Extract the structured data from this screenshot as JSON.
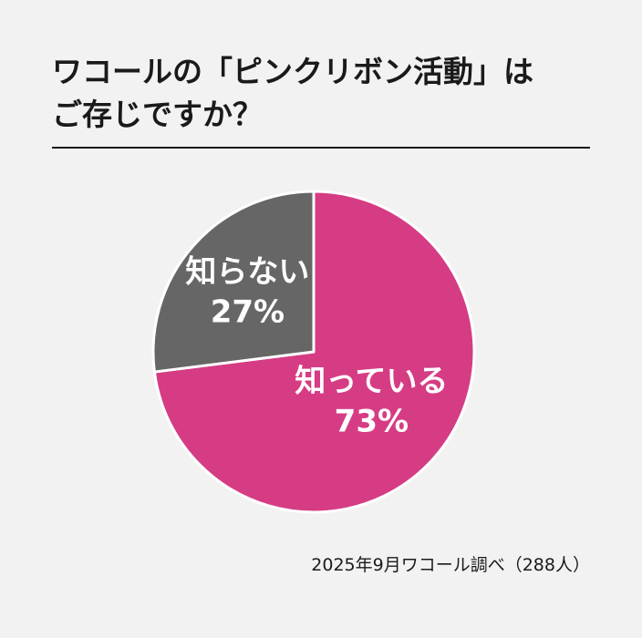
{
  "chart_data": {
    "type": "pie",
    "title": [
      "ワコールの「ピンクリボン活動」は",
      "ご存じですか？"
    ],
    "categories": [
      "知っている",
      "知らない"
    ],
    "values": [
      73,
      27
    ],
    "value_labels": [
      "73%",
      "27%"
    ],
    "colors": [
      "#d63c84",
      "#666666"
    ],
    "source": "2025年9月ワコール調べ（288人）"
  }
}
